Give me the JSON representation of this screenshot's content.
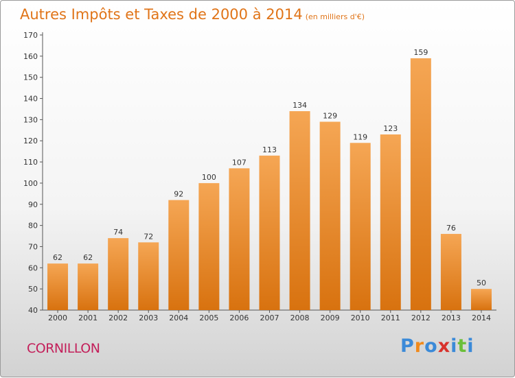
{
  "chart_data": {
    "type": "bar",
    "title": "Autres Impôts et Taxes de 2000 à 2014",
    "unit_label": "(en milliers d'€)",
    "categories": [
      "2000",
      "2001",
      "2002",
      "2003",
      "2004",
      "2005",
      "2006",
      "2007",
      "2008",
      "2009",
      "2010",
      "2011",
      "2012",
      "2013",
      "2014"
    ],
    "values": [
      62,
      62,
      74,
      72,
      92,
      100,
      107,
      113,
      134,
      129,
      119,
      123,
      159,
      76,
      50
    ],
    "ylim": [
      40,
      170
    ],
    "yticks": [
      40,
      50,
      60,
      70,
      80,
      90,
      100,
      110,
      120,
      130,
      140,
      150,
      160,
      170
    ],
    "grid": false,
    "bar_color_light": "#f5a654",
    "bar_color_dark": "#d8720f"
  },
  "commune": "CORNILLON",
  "brand": {
    "letters": [
      "P",
      "r",
      "o",
      "x",
      "i",
      "t",
      "i"
    ],
    "colors": [
      "#3b8ad8",
      "#f08a1c",
      "#3b8ad8",
      "#d8322c",
      "#3b8ad8",
      "#6bbf3a",
      "#3b8ad8"
    ]
  }
}
